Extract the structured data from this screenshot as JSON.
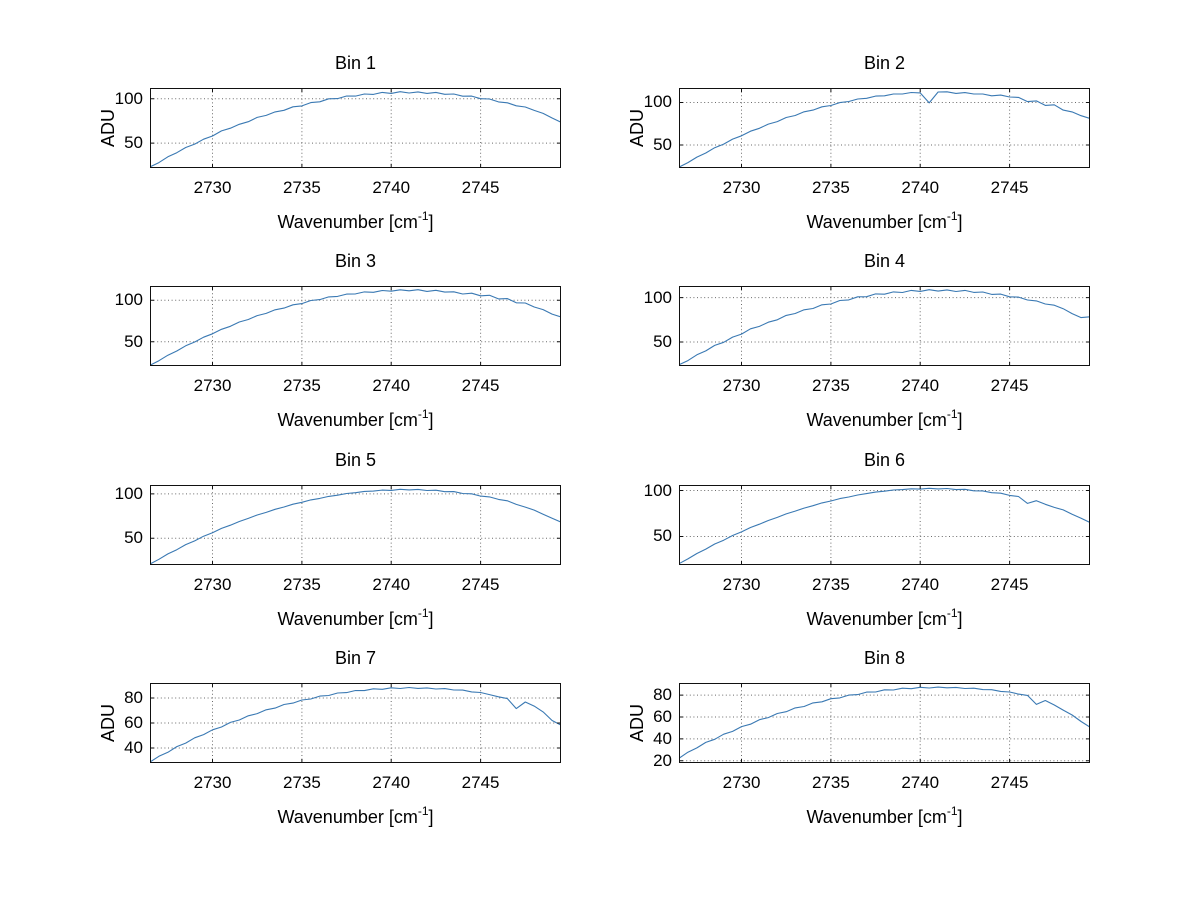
{
  "figure": {
    "background": "#ffffff",
    "line_color": "#3a79b3",
    "grid_color": "#6b6b6b",
    "axis_color": "#111111",
    "text_color": "#000000"
  },
  "axis_labels": {
    "ylabel": "ADU",
    "xlabel_prefix": "Wavenumber [cm",
    "xlabel_sup": "-1",
    "xlabel_suffix": "]"
  },
  "chart_data": {
    "type": "line",
    "layout": "4x2-subplots",
    "grid": true,
    "xlabel": "Wavenumber [cm^-1]",
    "ylabel": "ADU",
    "xlim": [
      2726.5,
      2749.5
    ],
    "xticks": [
      2730,
      2735,
      2740,
      2745
    ],
    "x": [
      2726.5,
      2727,
      2727.5,
      2728,
      2728.5,
      2729,
      2729.5,
      2730,
      2730.5,
      2731,
      2731.5,
      2732,
      2732.5,
      2733,
      2733.5,
      2734,
      2734.5,
      2735,
      2735.5,
      2736,
      2736.5,
      2737,
      2737.5,
      2738,
      2738.5,
      2739,
      2739.5,
      2740,
      2740.5,
      2741,
      2741.5,
      2742,
      2742.5,
      2743,
      2743.5,
      2744,
      2744.5,
      2745,
      2745.5,
      2746,
      2746.5,
      2747,
      2747.5,
      2748,
      2748.5,
      2749,
      2749.5
    ],
    "subplots": [
      {
        "title": "Bin 1",
        "ylabel": "ADU",
        "ylim": [
          22,
          112
        ],
        "yticks": [
          50,
          100
        ],
        "y": [
          23.2,
          28.1,
          34.6,
          39.2,
          45.1,
          48.9,
          54.4,
          58.0,
          63.7,
          66.8,
          71.2,
          74.1,
          78.9,
          81.2,
          85.1,
          86.9,
          90.8,
          91.9,
          95.6,
          96.5,
          99.8,
          100.1,
          103.0,
          102.9,
          105.3,
          104.8,
          107.0,
          105.9,
          107.8,
          106.4,
          107.6,
          105.9,
          107.0,
          104.9,
          105.3,
          102.8,
          102.9,
          100.0,
          99.6,
          96.4,
          95.4,
          92.0,
          90.6,
          86.8,
          83.4,
          78.2,
          73.5
        ]
      },
      {
        "title": "Bin 2",
        "ylabel": "ADU",
        "ylim": [
          23,
          117
        ],
        "yticks": [
          50,
          100
        ],
        "y": [
          24.0,
          29.3,
          35.8,
          40.6,
          46.9,
          51.1,
          56.9,
          60.8,
          66.2,
          69.7,
          74.6,
          77.5,
          82.3,
          84.7,
          89.0,
          91.0,
          94.9,
          96.4,
          99.9,
          101.1,
          104.1,
          104.9,
          107.5,
          107.8,
          110.0,
          109.9,
          111.7,
          111.2,
          99.5,
          112.3,
          112.5,
          110.7,
          111.6,
          109.9,
          109.9,
          107.8,
          108.7,
          106.4,
          105.9,
          101.0,
          101.9,
          96.5,
          97.3,
          91.0,
          88.9,
          84.5,
          81.2
        ]
      },
      {
        "title": "Bin 3",
        "ylabel": "",
        "ylim": [
          21,
          117
        ],
        "yticks": [
          50,
          100
        ],
        "y": [
          21.9,
          27.4,
          34.0,
          39.0,
          45.2,
          49.8,
          55.6,
          59.7,
          65.1,
          68.7,
          73.8,
          76.8,
          81.5,
          84.1,
          88.4,
          90.5,
          94.4,
          95.9,
          99.6,
          100.7,
          103.9,
          104.5,
          107.3,
          107.5,
          109.9,
          109.5,
          111.6,
          110.8,
          112.5,
          111.2,
          112.6,
          110.5,
          111.9,
          109.7,
          110.0,
          107.4,
          108.4,
          105.2,
          105.8,
          101.5,
          101.9,
          96.9,
          96.6,
          91.8,
          88.7,
          83.3,
          79.8
        ]
      },
      {
        "title": "Bin 4",
        "ylabel": "",
        "ylim": [
          23,
          113
        ],
        "yticks": [
          50,
          100
        ],
        "y": [
          24.5,
          29.1,
          35.6,
          40.0,
          46.2,
          49.7,
          55.5,
          58.9,
          64.8,
          67.6,
          72.3,
          75.0,
          79.9,
          82.1,
          86.2,
          87.7,
          91.9,
          92.8,
          96.7,
          97.4,
          100.9,
          101.0,
          104.1,
          103.8,
          106.4,
          105.7,
          108.1,
          106.9,
          108.8,
          107.3,
          108.6,
          106.8,
          108.0,
          105.8,
          106.3,
          103.6,
          103.9,
          100.8,
          100.5,
          97.2,
          96.2,
          92.7,
          91.4,
          87.5,
          82.0,
          77.5,
          78.3
        ]
      },
      {
        "title": "Bin 5",
        "ylabel": "",
        "ylim": [
          20,
          110
        ],
        "yticks": [
          50,
          100
        ],
        "y": [
          21.1,
          26.4,
          32.5,
          37.2,
          43.0,
          47.1,
          52.4,
          56.3,
          61.2,
          64.8,
          68.9,
          72.4,
          76.3,
          79.2,
          82.7,
          85.2,
          88.4,
          90.5,
          93.2,
          94.9,
          97.2,
          98.5,
          100.4,
          101.3,
          102.8,
          103.1,
          104.3,
          103.9,
          105.2,
          104.5,
          105.1,
          103.8,
          104.2,
          102.5,
          102.6,
          100.4,
          100.1,
          97.5,
          96.6,
          93.8,
          92.2,
          88.2,
          85.1,
          81.8,
          77.2,
          72.6,
          68.3
        ]
      },
      {
        "title": "Bin 6",
        "ylabel": "",
        "ylim": [
          19,
          106
        ],
        "yticks": [
          50,
          100
        ],
        "y": [
          20.4,
          25.6,
          31.5,
          36.3,
          41.8,
          46.0,
          51.1,
          55.0,
          59.8,
          63.4,
          67.4,
          70.8,
          74.6,
          77.6,
          80.9,
          83.5,
          86.5,
          88.6,
          91.2,
          93.0,
          95.1,
          96.6,
          98.3,
          99.3,
          100.6,
          101.0,
          101.9,
          101.5,
          102.4,
          101.8,
          102.2,
          101.0,
          101.3,
          99.7,
          99.6,
          97.6,
          97.1,
          94.7,
          93.5,
          86.0,
          88.9,
          85.0,
          81.6,
          78.9,
          74.1,
          69.8,
          65.2
        ]
      },
      {
        "title": "Bin 7",
        "ylabel": "ADU",
        "ylim": [
          28,
          92
        ],
        "yticks": [
          40,
          60,
          80
        ],
        "y": [
          28.8,
          33.4,
          36.6,
          41.1,
          43.9,
          48.2,
          50.7,
          54.6,
          56.8,
          60.5,
          62.4,
          65.8,
          67.5,
          70.6,
          71.9,
          74.8,
          75.9,
          78.4,
          79.2,
          81.5,
          82.0,
          84.0,
          84.3,
          86.0,
          85.9,
          87.4,
          87.0,
          88.2,
          87.6,
          88.4,
          87.7,
          88.1,
          87.2,
          87.5,
          86.4,
          86.3,
          84.9,
          84.4,
          82.7,
          81.0,
          79.5,
          71.5,
          76.8,
          73.5,
          68.9,
          62.0,
          58.3
        ]
      },
      {
        "title": "Bin 8",
        "ylabel": "ADU",
        "ylim": [
          18,
          91
        ],
        "yticks": [
          20,
          40,
          60,
          80
        ],
        "y": [
          22.3,
          27.9,
          31.8,
          36.8,
          39.6,
          44.3,
          46.8,
          51.2,
          53.4,
          57.5,
          59.4,
          63.2,
          64.8,
          68.3,
          69.6,
          72.8,
          73.8,
          76.7,
          77.4,
          80.0,
          80.4,
          82.7,
          82.8,
          84.8,
          84.6,
          86.3,
          85.8,
          87.1,
          86.4,
          87.3,
          86.6,
          87.0,
          86.0,
          86.3,
          85.0,
          84.9,
          83.3,
          82.8,
          80.9,
          79.7,
          71.5,
          75.0,
          70.9,
          66.3,
          61.8,
          55.9,
          50.8
        ]
      }
    ]
  }
}
